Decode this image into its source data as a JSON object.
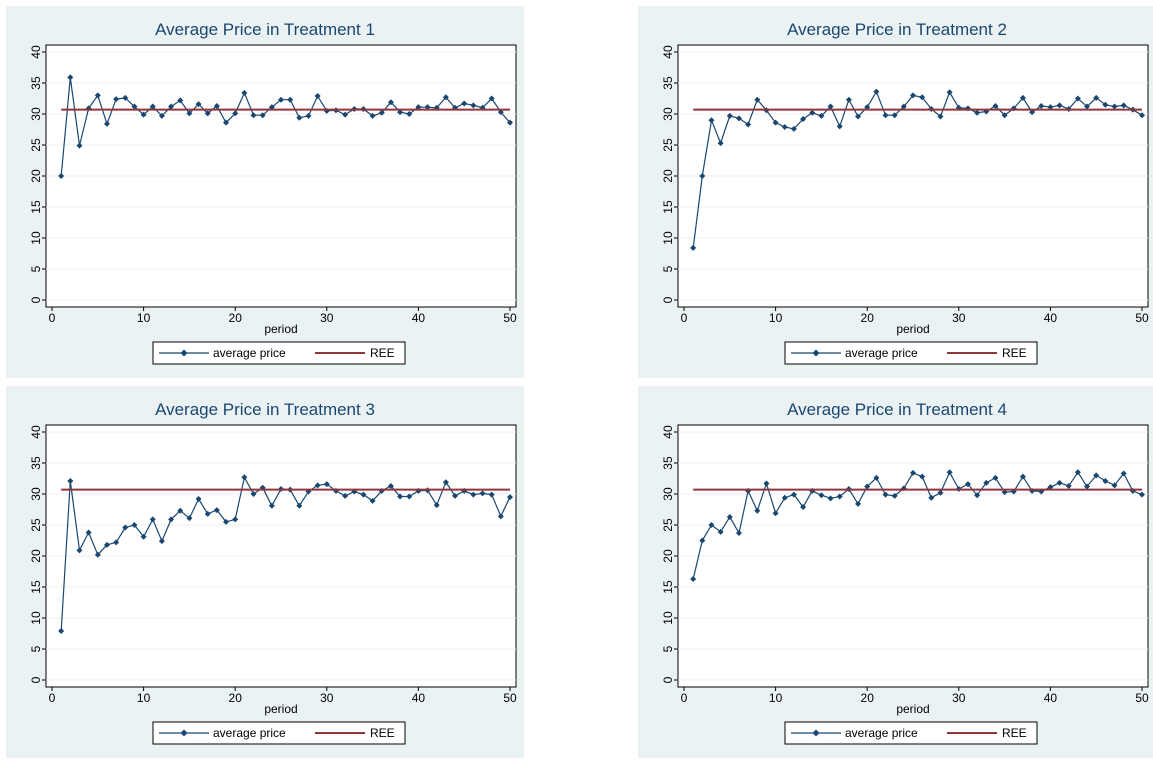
{
  "chart_data": [
    {
      "type": "line",
      "title": "Average Price in Treatment 1",
      "xlabel": "period",
      "ylabel": "",
      "xlim": [
        0,
        50
      ],
      "ylim": [
        0,
        40
      ],
      "xticks": [
        0,
        10,
        20,
        30,
        40,
        50
      ],
      "yticks": [
        0,
        5,
        10,
        15,
        20,
        25,
        30,
        35,
        40
      ],
      "grid": true,
      "legend_position": "bottom",
      "x": [
        1,
        2,
        3,
        4,
        5,
        6,
        7,
        8,
        9,
        10,
        11,
        12,
        13,
        14,
        15,
        16,
        17,
        18,
        19,
        20,
        21,
        22,
        23,
        24,
        25,
        26,
        27,
        28,
        29,
        30,
        31,
        32,
        33,
        34,
        35,
        36,
        37,
        38,
        39,
        40,
        41,
        42,
        43,
        44,
        45,
        46,
        47,
        48,
        49,
        50
      ],
      "series": [
        {
          "name": "average price",
          "kind": "line-marker",
          "color": "#1a476f",
          "values": [
            20.0,
            35.9,
            24.9,
            30.9,
            33.0,
            28.4,
            32.4,
            32.6,
            31.2,
            29.9,
            31.2,
            29.7,
            31.2,
            32.2,
            30.1,
            31.6,
            30.1,
            31.3,
            28.6,
            30.1,
            33.4,
            29.8,
            29.8,
            31.1,
            32.3,
            32.3,
            29.4,
            29.7,
            32.9,
            30.5,
            30.6,
            29.9,
            30.8,
            30.8,
            29.7,
            30.2,
            31.9,
            30.3,
            30.0,
            31.1,
            31.1,
            31.0,
            32.7,
            31.0,
            31.7,
            31.4,
            31.0,
            32.5,
            30.3,
            28.6
          ]
        },
        {
          "name": "REE",
          "kind": "hline",
          "color": "#90353b",
          "value": 30.7,
          "x_range": [
            1,
            50
          ]
        }
      ]
    },
    {
      "type": "line",
      "title": "Average Price in Treatment 2",
      "xlabel": "period",
      "ylabel": "",
      "xlim": [
        0,
        50
      ],
      "ylim": [
        0,
        40
      ],
      "xticks": [
        0,
        10,
        20,
        30,
        40,
        50
      ],
      "yticks": [
        0,
        5,
        10,
        15,
        20,
        25,
        30,
        35,
        40
      ],
      "grid": true,
      "legend_position": "bottom",
      "x": [
        1,
        2,
        3,
        4,
        5,
        6,
        7,
        8,
        9,
        10,
        11,
        12,
        13,
        14,
        15,
        16,
        17,
        18,
        19,
        20,
        21,
        22,
        23,
        24,
        25,
        26,
        27,
        28,
        29,
        30,
        31,
        32,
        33,
        34,
        35,
        36,
        37,
        38,
        39,
        40,
        41,
        42,
        43,
        44,
        45,
        46,
        47,
        48,
        49,
        50
      ],
      "series": [
        {
          "name": "average price",
          "kind": "line-marker",
          "color": "#1a476f",
          "values": [
            8.4,
            20.0,
            29.0,
            25.3,
            29.7,
            29.3,
            28.3,
            32.3,
            30.6,
            28.6,
            27.9,
            27.6,
            29.2,
            30.2,
            29.7,
            31.2,
            28.0,
            32.3,
            29.6,
            31.1,
            33.6,
            29.8,
            29.8,
            31.2,
            33.0,
            32.7,
            30.8,
            29.6,
            33.5,
            31.0,
            30.9,
            30.2,
            30.4,
            31.3,
            29.8,
            30.9,
            32.6,
            30.3,
            31.3,
            31.1,
            31.4,
            30.8,
            32.5,
            31.2,
            32.6,
            31.5,
            31.2,
            31.4,
            30.7,
            29.8
          ]
        },
        {
          "name": "REE",
          "kind": "hline",
          "color": "#90353b",
          "value": 30.7,
          "x_range": [
            1,
            50
          ]
        }
      ]
    },
    {
      "type": "line",
      "title": "Average Price in Treatment 3",
      "xlabel": "period",
      "ylabel": "",
      "xlim": [
        0,
        50
      ],
      "ylim": [
        0,
        40
      ],
      "xticks": [
        0,
        10,
        20,
        30,
        40,
        50
      ],
      "yticks": [
        0,
        5,
        10,
        15,
        20,
        25,
        30,
        35,
        40
      ],
      "grid": true,
      "legend_position": "bottom",
      "x": [
        1,
        2,
        3,
        4,
        5,
        6,
        7,
        8,
        9,
        10,
        11,
        12,
        13,
        14,
        15,
        16,
        17,
        18,
        19,
        20,
        21,
        22,
        23,
        24,
        25,
        26,
        27,
        28,
        29,
        30,
        31,
        32,
        33,
        34,
        35,
        36,
        37,
        38,
        39,
        40,
        41,
        42,
        43,
        44,
        45,
        46,
        47,
        48,
        49,
        50
      ],
      "series": [
        {
          "name": "average price",
          "kind": "line-marker",
          "color": "#1a476f",
          "values": [
            7.9,
            32.1,
            20.9,
            23.8,
            20.2,
            21.8,
            22.2,
            24.6,
            25.0,
            23.1,
            25.9,
            22.4,
            25.9,
            27.3,
            26.1,
            29.2,
            26.8,
            27.4,
            25.5,
            25.9,
            32.7,
            30.0,
            31.0,
            28.1,
            30.8,
            30.7,
            28.1,
            30.4,
            31.4,
            31.6,
            30.5,
            29.7,
            30.4,
            29.9,
            28.9,
            30.5,
            31.3,
            29.6,
            29.6,
            30.5,
            30.6,
            28.2,
            31.9,
            29.7,
            30.5,
            29.9,
            30.1,
            29.9,
            26.4,
            29.5
          ]
        },
        {
          "name": "REE",
          "kind": "hline",
          "color": "#90353b",
          "value": 30.7,
          "x_range": [
            1,
            50
          ]
        }
      ]
    },
    {
      "type": "line",
      "title": "Average Price in Treatment 4",
      "xlabel": "period",
      "ylabel": "",
      "xlim": [
        0,
        50
      ],
      "ylim": [
        0,
        40
      ],
      "xticks": [
        0,
        10,
        20,
        30,
        40,
        50
      ],
      "yticks": [
        0,
        5,
        10,
        15,
        20,
        25,
        30,
        35,
        40
      ],
      "grid": true,
      "legend_position": "bottom",
      "x": [
        1,
        2,
        3,
        4,
        5,
        6,
        7,
        8,
        9,
        10,
        11,
        12,
        13,
        14,
        15,
        16,
        17,
        18,
        19,
        20,
        21,
        22,
        23,
        24,
        25,
        26,
        27,
        28,
        29,
        30,
        31,
        32,
        33,
        34,
        35,
        36,
        37,
        38,
        39,
        40,
        41,
        42,
        43,
        44,
        45,
        46,
        47,
        48,
        49,
        50
      ],
      "series": [
        {
          "name": "average price",
          "kind": "line-marker",
          "color": "#1a476f",
          "values": [
            16.3,
            22.5,
            25.0,
            23.9,
            26.3,
            23.7,
            30.5,
            27.3,
            31.7,
            26.9,
            29.4,
            29.9,
            27.9,
            30.5,
            29.8,
            29.3,
            29.6,
            30.8,
            28.4,
            31.2,
            32.6,
            29.9,
            29.7,
            30.9,
            33.4,
            32.8,
            29.4,
            30.2,
            33.5,
            30.8,
            31.6,
            29.8,
            31.8,
            32.6,
            30.3,
            30.4,
            32.8,
            30.5,
            30.4,
            31.1,
            31.8,
            31.3,
            33.5,
            31.2,
            33.0,
            32.1,
            31.4,
            33.3,
            30.5,
            29.9
          ]
        },
        {
          "name": "REE",
          "kind": "hline",
          "color": "#90353b",
          "value": 30.7,
          "x_range": [
            1,
            50
          ]
        }
      ]
    }
  ]
}
